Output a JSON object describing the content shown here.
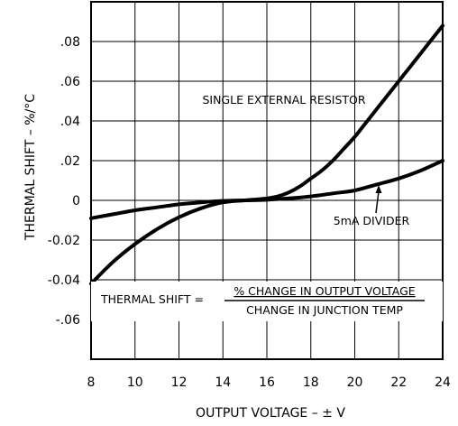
{
  "chart_data": {
    "type": "line",
    "title": "",
    "xlabel": "OUTPUT VOLTAGE – ± V",
    "ylabel": "THERMAL SHIFT – %/°C",
    "xlim": [
      8,
      24
    ],
    "ylim": [
      -0.08,
      0.1
    ],
    "x_ticks": [
      8,
      10,
      12,
      14,
      16,
      18,
      20,
      22,
      24
    ],
    "x_tick_labels": [
      "8",
      "10",
      "12",
      "14",
      "16",
      "18",
      "20",
      "22",
      "24"
    ],
    "y_ticks": [
      0.08,
      0.06,
      0.04,
      0.02,
      0,
      -0.02,
      -0.04,
      -0.06
    ],
    "y_tick_labels": [
      ".08",
      ".06",
      ".04",
      ".02",
      "0",
      "-0.02",
      "-0.04",
      "-.06"
    ],
    "grid": true,
    "series": [
      {
        "name": "SINGLE EXTERNAL RESISTOR",
        "x": [
          8,
          9,
          10,
          11,
          12,
          13,
          14,
          15,
          16,
          16.5,
          17,
          17.5,
          18,
          18.5,
          19,
          19.5,
          20,
          20.5,
          21,
          21.5,
          22,
          22.5,
          23,
          23.5,
          24
        ],
        "y": [
          -0.042,
          -0.031,
          -0.022,
          -0.0145,
          -0.0085,
          -0.004,
          -0.001,
          0.0,
          0.001,
          0.002,
          0.004,
          0.007,
          0.011,
          0.015,
          0.02,
          0.026,
          0.032,
          0.039,
          0.046,
          0.053,
          0.06,
          0.067,
          0.074,
          0.081,
          0.088
        ]
      },
      {
        "name": "5mA DIVIDER",
        "x": [
          8,
          9,
          10,
          11,
          12,
          13,
          14,
          15,
          16,
          17,
          18,
          19,
          20,
          21,
          22,
          23,
          24
        ],
        "y": [
          -0.009,
          -0.007,
          -0.005,
          -0.0035,
          -0.002,
          -0.001,
          -0.0003,
          0.0,
          0.0003,
          0.001,
          0.002,
          0.0035,
          0.005,
          0.008,
          0.011,
          0.015,
          0.02
        ]
      }
    ],
    "annotations": {
      "single_resistor_label": "SINGLE EXTERNAL RESISTOR",
      "divider_label": "5mA DIVIDER",
      "formula_lhs": "THERMAL SHIFT =",
      "formula_numerator": "% CHANGE IN OUTPUT VOLTAGE",
      "formula_denominator": "CHANGE IN JUNCTION TEMP"
    }
  }
}
